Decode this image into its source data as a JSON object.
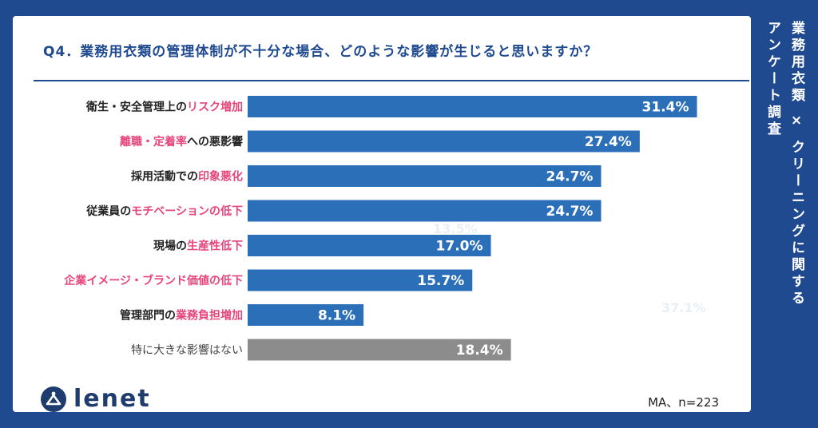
{
  "side_title": {
    "line1": "業務用衣類 × クリーニングに関する",
    "line2": "アンケート調査"
  },
  "logo": {
    "text": "lenet"
  },
  "sample_note": "MA、n=223",
  "ghost_labels": [
    "13.5%",
    "37.1%"
  ],
  "colors": {
    "primary": "#2c6fb9",
    "accent": "#e6457a",
    "gray": "#8c8c8c",
    "navy": "#1f4a8f"
  },
  "chart_data": {
    "type": "bar",
    "orientation": "horizontal",
    "title": "Q4．業務用衣類の管理体制が不十分な場合、どのような影響が生じると思いますか？",
    "xlim": [
      0,
      35
    ],
    "unit": "%",
    "categories": [
      {
        "parts": [
          {
            "text": "衛生・安全管理上の",
            "hl": false
          },
          {
            "text": "リスク増加",
            "hl": true
          }
        ]
      },
      {
        "parts": [
          {
            "text": "離職・定着率",
            "hl": true
          },
          {
            "text": "への悪影響",
            "hl": false
          }
        ]
      },
      {
        "parts": [
          {
            "text": "採用活動での",
            "hl": false
          },
          {
            "text": "印象悪化",
            "hl": true
          }
        ]
      },
      {
        "parts": [
          {
            "text": "従業員の",
            "hl": false
          },
          {
            "text": "モチベーションの低下",
            "hl": true
          }
        ]
      },
      {
        "parts": [
          {
            "text": "現場の",
            "hl": false
          },
          {
            "text": "生産性低下",
            "hl": true
          }
        ]
      },
      {
        "parts": [
          {
            "text": "企業イメージ・ブランド価値の低下",
            "hl": true
          }
        ]
      },
      {
        "parts": [
          {
            "text": "管理部門の",
            "hl": false
          },
          {
            "text": "業務負担増加",
            "hl": true
          }
        ]
      },
      {
        "parts": [
          {
            "text": "特に大きな影響はない",
            "hl": false
          }
        ]
      }
    ],
    "values": [
      31.4,
      27.4,
      24.7,
      24.7,
      17.0,
      15.7,
      8.1,
      18.4
    ],
    "value_labels": [
      "31.4%",
      "27.4%",
      "24.7%",
      "24.7%",
      "17.0%",
      "15.7%",
      "8.1%",
      "18.4%"
    ],
    "bar_colors": [
      "primary",
      "primary",
      "primary",
      "primary",
      "primary",
      "primary",
      "primary",
      "gray"
    ]
  }
}
